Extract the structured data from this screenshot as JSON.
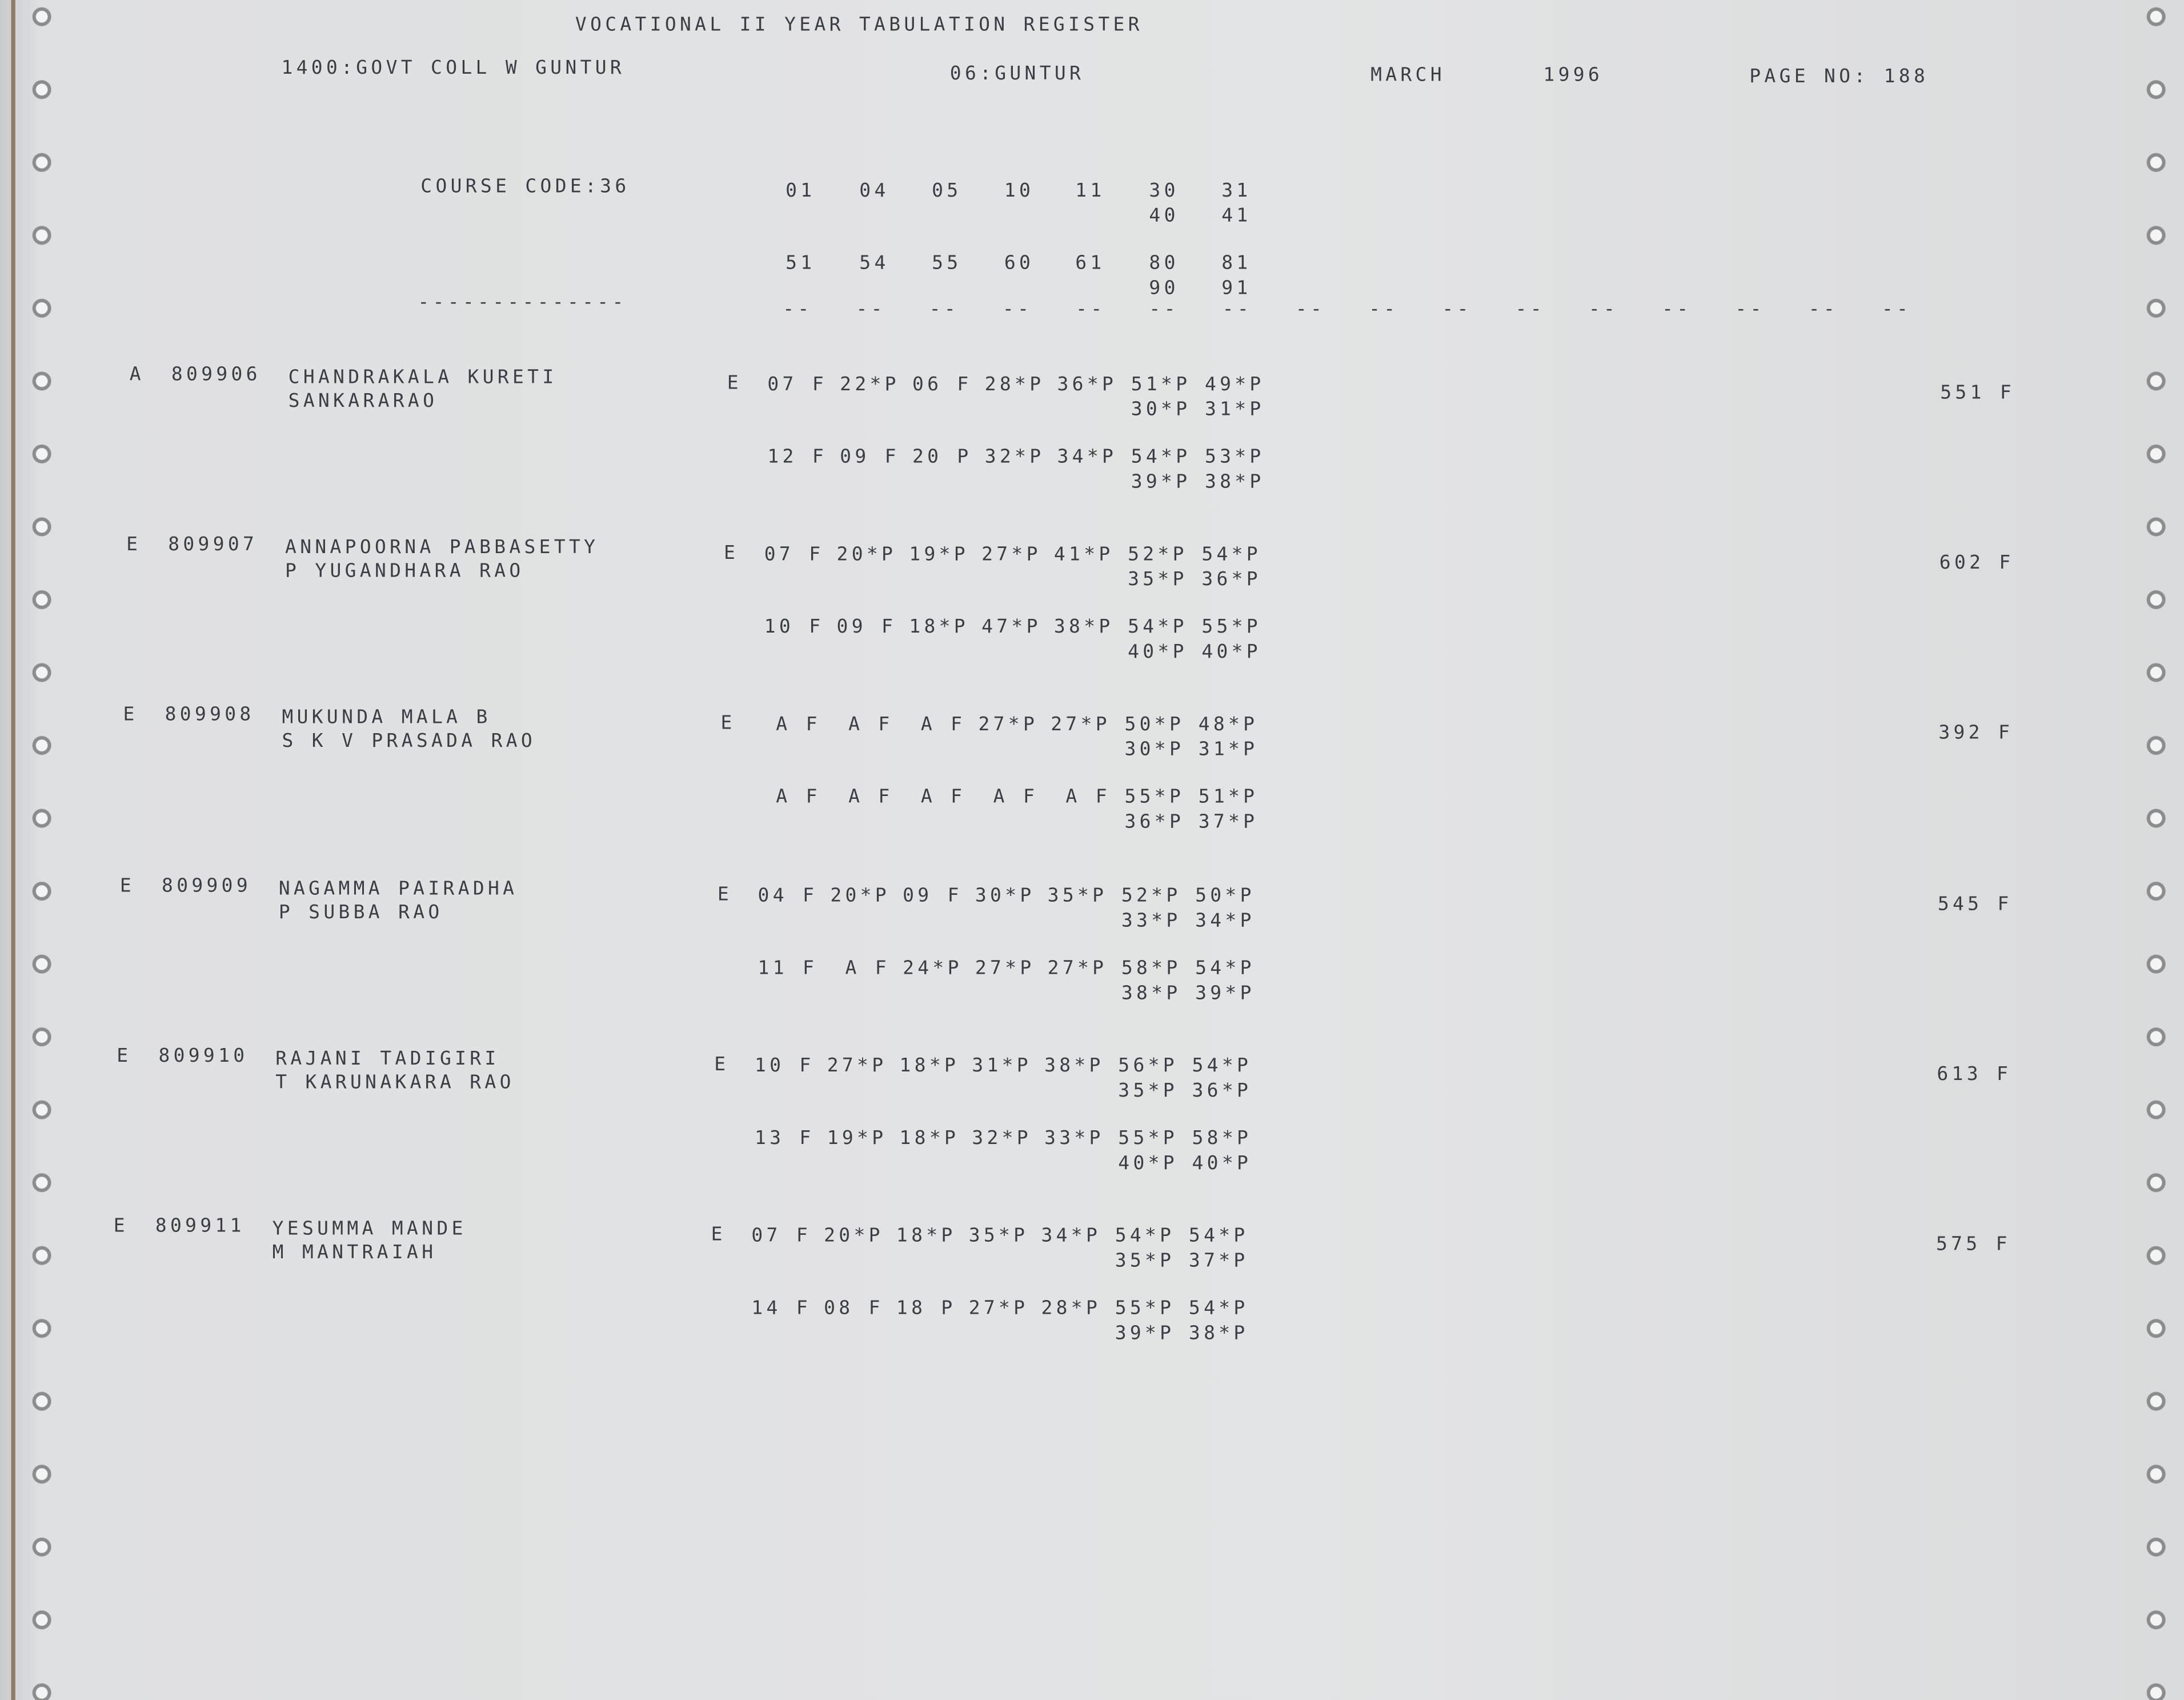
{
  "header": {
    "title": "VOCATIONAL II YEAR TABULATION REGISTER",
    "college": "1400:GOVT COLL W GUNTUR",
    "district": "06:GUNTUR",
    "month": "MARCH",
    "year": "1996",
    "page": "PAGE NO: 188"
  },
  "course": {
    "label": "COURSE CODE:36",
    "code_rows": [
      {
        "codes": [
          "01",
          "04",
          "05",
          "10",
          "11",
          "30",
          "31"
        ],
        "sub": [
          "40",
          "41"
        ]
      },
      {
        "codes": [
          "51",
          "54",
          "55",
          "60",
          "61",
          "80",
          "81"
        ],
        "sub": [
          "90",
          "91"
        ]
      }
    ],
    "separator": "--------------",
    "column_dashes": [
      "--",
      "--",
      "--",
      "--",
      "--",
      "--",
      "--",
      "--",
      "--",
      "--",
      "--",
      "--",
      "--",
      "--",
      "--",
      "--"
    ]
  },
  "students": [
    {
      "code": "A",
      "number": "809906",
      "name": "CHANDRAKALA KURETI",
      "father": "SANKARARAO",
      "prefix": "E",
      "rows": [
        {
          "cells": [
            "07 F",
            "22*P",
            "06 F",
            "28*P",
            "36*P",
            "51*P",
            "49*P"
          ],
          "sub": [
            "30*P",
            "31*P"
          ]
        },
        {
          "cells": [
            "12 F",
            "09 F",
            "20 P",
            "32*P",
            "34*P",
            "54*P",
            "53*P"
          ],
          "sub": [
            "39*P",
            "38*P"
          ]
        }
      ],
      "total": "551 F"
    },
    {
      "code": "E",
      "number": "809907",
      "name": "ANNAPOORNA PABBASETTY",
      "father": "P YUGANDHARA RAO",
      "prefix": "E",
      "rows": [
        {
          "cells": [
            "07 F",
            "20*P",
            "19*P",
            "27*P",
            "41*P",
            "52*P",
            "54*P"
          ],
          "sub": [
            "35*P",
            "36*P"
          ]
        },
        {
          "cells": [
            "10 F",
            "09 F",
            "18*P",
            "47*P",
            "38*P",
            "54*P",
            "55*P"
          ],
          "sub": [
            "40*P",
            "40*P"
          ]
        }
      ],
      "total": "602 F"
    },
    {
      "code": "E",
      "number": "809908",
      "name": "MUKUNDA MALA B",
      "father": "S K V PRASADA RAO",
      "prefix": "E",
      "rows": [
        {
          "cells": [
            " A F",
            " A F",
            " A F",
            "27*P",
            "27*P",
            "50*P",
            "48*P"
          ],
          "sub": [
            "30*P",
            "31*P"
          ]
        },
        {
          "cells": [
            " A F",
            " A F",
            " A F",
            " A F",
            " A F",
            "55*P",
            "51*P"
          ],
          "sub": [
            "36*P",
            "37*P"
          ]
        }
      ],
      "total": "392 F"
    },
    {
      "code": "E",
      "number": "809909",
      "name": "NAGAMMA PAIRADHA",
      "father": "P SUBBA RAO",
      "prefix": "E",
      "rows": [
        {
          "cells": [
            "04 F",
            "20*P",
            "09 F",
            "30*P",
            "35*P",
            "52*P",
            "50*P"
          ],
          "sub": [
            "33*P",
            "34*P"
          ]
        },
        {
          "cells": [
            "11 F",
            " A F",
            "24*P",
            "27*P",
            "27*P",
            "58*P",
            "54*P"
          ],
          "sub": [
            "38*P",
            "39*P"
          ]
        }
      ],
      "total": "545 F"
    },
    {
      "code": "E",
      "number": "809910",
      "name": "RAJANI TADIGIRI",
      "father": "T KARUNAKARA RAO",
      "prefix": "E",
      "rows": [
        {
          "cells": [
            "10 F",
            "27*P",
            "18*P",
            "31*P",
            "38*P",
            "56*P",
            "54*P"
          ],
          "sub": [
            "35*P",
            "36*P"
          ]
        },
        {
          "cells": [
            "13 F",
            "19*P",
            "18*P",
            "32*P",
            "33*P",
            "55*P",
            "58*P"
          ],
          "sub": [
            "40*P",
            "40*P"
          ]
        }
      ],
      "total": "613 F"
    },
    {
      "code": "E",
      "number": "809911",
      "name": "YESUMMA MANDE",
      "father": "M MANTRAIAH",
      "prefix": "E",
      "rows": [
        {
          "cells": [
            "07 F",
            "20*P",
            "18*P",
            "35*P",
            "34*P",
            "54*P",
            "54*P"
          ],
          "sub": [
            "35*P",
            "37*P"
          ]
        },
        {
          "cells": [
            "14 F",
            "08 F",
            "18 P",
            "27*P",
            "28*P",
            "55*P",
            "54*P"
          ],
          "sub": [
            "39*P",
            "38*P"
          ]
        }
      ],
      "total": "575 F"
    }
  ]
}
